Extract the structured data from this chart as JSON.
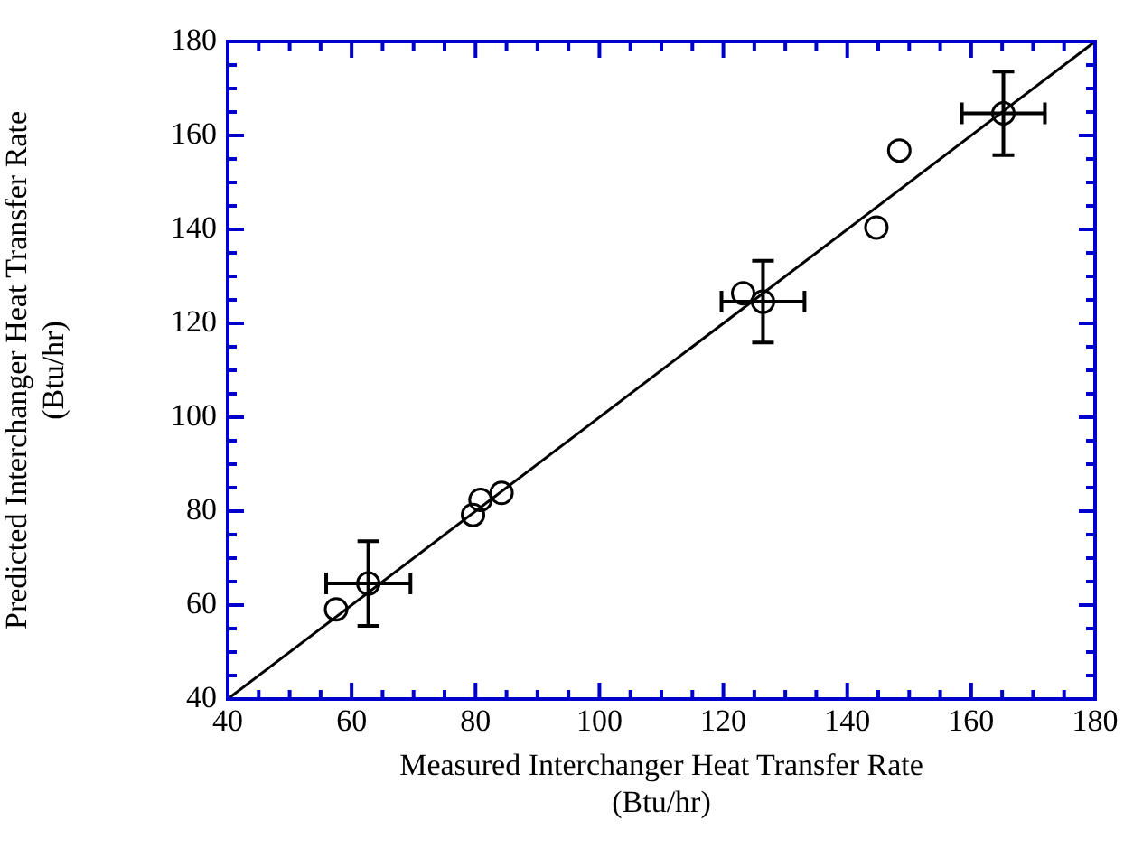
{
  "chart_data": {
    "type": "scatter",
    "xlabel": "Measured Interchanger Heat Transfer Rate\n(Btu/hr)",
    "ylabel": "Predicted Interchanger Heat Transfer Rate\n(Btu/hr)",
    "xlim": [
      40,
      180
    ],
    "ylim": [
      40,
      180
    ],
    "xticks": [
      40,
      {
        "value": 45,
        "label": null
      },
      {
        "value": 50,
        "label": null
      },
      {
        "value": 55,
        "label": null
      },
      60,
      {
        "value": 65,
        "label": null
      },
      {
        "value": 70,
        "label": null
      },
      {
        "value": 75,
        "label": null
      },
      80,
      {
        "value": 85,
        "label": null
      },
      {
        "value": 90,
        "label": null
      },
      {
        "value": 95,
        "label": null
      },
      100,
      {
        "value": 105,
        "label": null
      },
      {
        "value": 110,
        "label": null
      },
      {
        "value": 115,
        "label": null
      },
      120,
      {
        "value": 125,
        "label": null
      },
      {
        "value": 130,
        "label": null
      },
      {
        "value": 135,
        "label": null
      },
      140,
      {
        "value": 145,
        "label": null
      },
      {
        "value": 150,
        "label": null
      },
      {
        "value": 155,
        "label": null
      },
      160,
      {
        "value": 165,
        "label": null
      },
      {
        "value": 170,
        "label": null
      },
      {
        "value": 175,
        "label": null
      },
      180
    ],
    "yticks": [
      40,
      {
        "value": 45,
        "label": null
      },
      {
        "value": 50,
        "label": null
      },
      {
        "value": 55,
        "label": null
      },
      60,
      {
        "value": 65,
        "label": null
      },
      {
        "value": 70,
        "label": null
      },
      {
        "value": 75,
        "label": null
      },
      80,
      {
        "value": 85,
        "label": null
      },
      {
        "value": 90,
        "label": null
      },
      {
        "value": 95,
        "label": null
      },
      100,
      {
        "value": 105,
        "label": null
      },
      {
        "value": 110,
        "label": null
      },
      {
        "value": 115,
        "label": null
      },
      120,
      {
        "value": 125,
        "label": null
      },
      {
        "value": 130,
        "label": null
      },
      {
        "value": 135,
        "label": null
      },
      140,
      {
        "value": 145,
        "label": null
      },
      {
        "value": 150,
        "label": null
      },
      {
        "value": 155,
        "label": null
      },
      160,
      {
        "value": 165,
        "label": null
      },
      {
        "value": 170,
        "label": null
      },
      {
        "value": 175,
        "label": null
      },
      180
    ],
    "marker": "circle",
    "legend": false,
    "series": [
      {
        "type": "scatter",
        "color": "#000000",
        "x": [
          57.5,
          62.7,
          79.6,
          80.8,
          84.2,
          123.2,
          126.4,
          144.7,
          148.4,
          165.2
        ],
        "values": [
          59.1,
          64.6,
          79.2,
          82.4,
          83.9,
          126.4,
          124.6,
          140.4,
          156.8,
          164.7
        ],
        "errors": [
          null,
          9,
          null,
          null,
          null,
          null,
          8.7,
          null,
          null,
          8.9
        ],
        "xerrors": [
          null,
          6.8,
          null,
          null,
          null,
          null,
          6.7,
          null,
          null,
          6.7
        ]
      },
      {
        "type": "line",
        "color": "#000000",
        "marker": "none",
        "line_style": "solid",
        "x": [
          40,
          180
        ],
        "values": [
          40,
          180
        ]
      }
    ]
  }
}
